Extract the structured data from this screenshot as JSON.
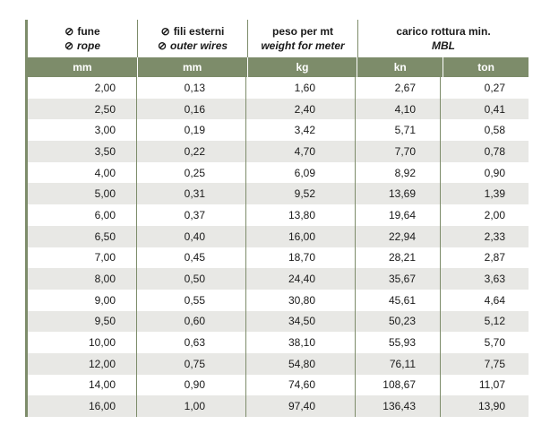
{
  "header": {
    "col1": {
      "line1": "fune",
      "line2": "rope"
    },
    "col2": {
      "line1": "fili esterni",
      "line2": "outer wires"
    },
    "col3": {
      "line1": "peso per mt",
      "line2": "weight for meter"
    },
    "col4": {
      "line1": "carico rottura min.",
      "line2": "MBL"
    },
    "diameter_symbol": "⊘"
  },
  "units": [
    "mm",
    "mm",
    "kg",
    "kn",
    "ton"
  ],
  "rows": [
    [
      "2,00",
      "0,13",
      "1,60",
      "2,67",
      "0,27"
    ],
    [
      "2,50",
      "0,16",
      "2,40",
      "4,10",
      "0,41"
    ],
    [
      "3,00",
      "0,19",
      "3,42",
      "5,71",
      "0,58"
    ],
    [
      "3,50",
      "0,22",
      "4,70",
      "7,70",
      "0,78"
    ],
    [
      "4,00",
      "0,25",
      "6,09",
      "8,92",
      "0,90"
    ],
    [
      "5,00",
      "0,31",
      "9,52",
      "13,69",
      "1,39"
    ],
    [
      "6,00",
      "0,37",
      "13,80",
      "19,64",
      "2,00"
    ],
    [
      "6,50",
      "0,40",
      "16,00",
      "22,94",
      "2,33"
    ],
    [
      "7,00",
      "0,45",
      "18,70",
      "28,21",
      "2,87"
    ],
    [
      "8,00",
      "0,50",
      "24,40",
      "35,67",
      "3,63"
    ],
    [
      "9,00",
      "0,55",
      "30,80",
      "45,61",
      "4,64"
    ],
    [
      "9,50",
      "0,60",
      "34,50",
      "50,23",
      "5,12"
    ],
    [
      "10,00",
      "0,63",
      "38,10",
      "55,93",
      "5,70"
    ],
    [
      "12,00",
      "0,75",
      "54,80",
      "76,11",
      "7,75"
    ],
    [
      "14,00",
      "0,90",
      "74,60",
      "108,67",
      "11,07"
    ],
    [
      "16,00",
      "1,00",
      "97,40",
      "136,43",
      "13,90"
    ]
  ],
  "colors": {
    "accent": "#7d8c6a",
    "row_alt": "#e8e8e5"
  }
}
